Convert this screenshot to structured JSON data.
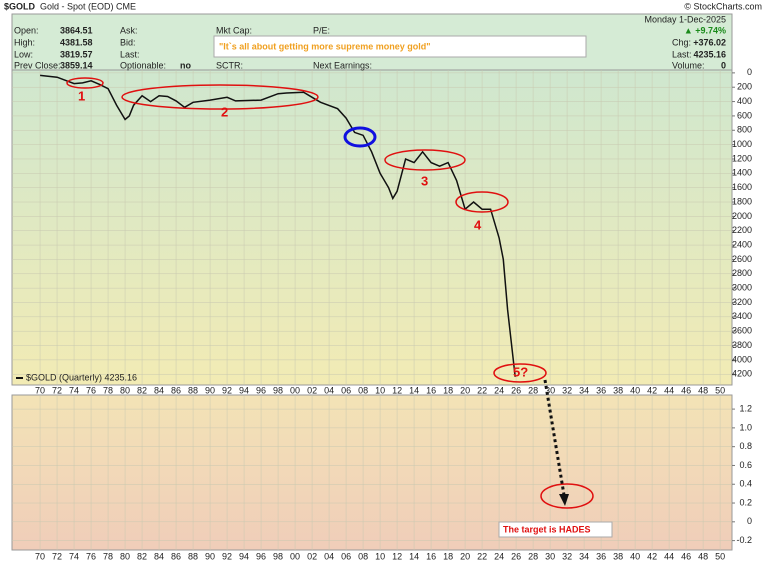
{
  "header": {
    "symbol": "$GOLD",
    "description": "Gold - Spot (EOD) CME",
    "credit": "© StockCharts.com",
    "date": "Monday 1-Dec-2025",
    "change_pct": "▲ +9.74%",
    "fields": [
      [
        "Open:",
        "3864.51"
      ],
      [
        "High:",
        "4381.58"
      ],
      [
        "Low:",
        "3819.57"
      ],
      [
        "Prev Close:",
        "3859.14"
      ]
    ],
    "mid_fields": [
      "Ask:",
      "Bid:",
      "Last:",
      "Optionable:"
    ],
    "optionable": "no",
    "mid2_fields": [
      "Mkt Cap:",
      "SCTR:"
    ],
    "mid3_fields": [
      "P/E:",
      "Next Earnings:"
    ],
    "right_fields": [
      [
        "Chg:",
        "+376.02"
      ],
      [
        "Last:",
        "4235.16"
      ],
      [
        "Volume:",
        "0"
      ]
    ]
  },
  "chart_data": [
    {
      "type": "line",
      "inverted": true,
      "grid": true,
      "x": [
        1970,
        1972,
        1974,
        1975,
        1976,
        1977,
        1978,
        1979,
        1980,
        1980.5,
        1981,
        1982,
        1983,
        1984,
        1985,
        1986,
        1987,
        1988,
        1990,
        1992,
        1993,
        1996,
        1998,
        1999,
        2001,
        2002,
        2003,
        2005,
        2006,
        2007,
        2008,
        2009,
        2010,
        2011,
        2011.5,
        2012,
        2013,
        2014,
        2015,
        2016,
        2017,
        2018,
        2019,
        2020,
        2021,
        2022,
        2023,
        2024,
        2024.5,
        2025,
        2025.9
      ],
      "series": [
        {
          "name": "$GOLD (Quarterly) 4235.16",
          "color": "#111111",
          "values": [
            35,
            60,
            150,
            140,
            110,
            160,
            220,
            450,
            650,
            600,
            450,
            320,
            400,
            320,
            330,
            390,
            480,
            410,
            380,
            340,
            390,
            380,
            290,
            280,
            270,
            340,
            410,
            500,
            630,
            830,
            870,
            1100,
            1400,
            1600,
            1750,
            1650,
            1200,
            1250,
            1100,
            1250,
            1300,
            1250,
            1500,
            1900,
            1800,
            1900,
            1900,
            2300,
            2600,
            3300,
            4235.16
          ]
        }
      ],
      "xlim": [
        1966.7,
        2051.4
      ],
      "ylim": [
        -40,
        4350
      ],
      "yticks": [
        0,
        200,
        400,
        600,
        800,
        1000,
        1200,
        1400,
        1600,
        1800,
        2000,
        2200,
        2400,
        2600,
        2800,
        3000,
        3200,
        3400,
        3600,
        3800,
        4000,
        4200
      ],
      "xticks": [
        {
          "value": 1970,
          "label": "70"
        },
        {
          "value": 1972,
          "label": "72"
        },
        {
          "value": 1974,
          "label": "74"
        },
        {
          "value": 1976,
          "label": "76"
        },
        {
          "value": 1978,
          "label": "78"
        },
        {
          "value": 1980,
          "label": "80"
        },
        {
          "value": 1982,
          "label": "82"
        },
        {
          "value": 1984,
          "label": "84"
        },
        {
          "value": 1986,
          "label": "86"
        },
        {
          "value": 1988,
          "label": "88"
        },
        {
          "value": 1990,
          "label": "90"
        },
        {
          "value": 1992,
          "label": "92"
        },
        {
          "value": 1994,
          "label": "94"
        },
        {
          "value": 1996,
          "label": "96"
        },
        {
          "value": 1998,
          "label": "98"
        },
        {
          "value": 2000,
          "label": "00"
        },
        {
          "value": 2002,
          "label": "02"
        },
        {
          "value": 2004,
          "label": "04"
        },
        {
          "value": 2006,
          "label": "06"
        },
        {
          "value": 2008,
          "label": "08"
        },
        {
          "value": 2010,
          "label": "10"
        },
        {
          "value": 2012,
          "label": "12"
        },
        {
          "value": 2014,
          "label": "14"
        },
        {
          "value": 2016,
          "label": "16"
        },
        {
          "value": 2018,
          "label": "18"
        },
        {
          "value": 2020,
          "label": "20"
        },
        {
          "value": 2022,
          "label": "22"
        },
        {
          "value": 2024,
          "label": "24"
        },
        {
          "value": 2026,
          "label": "26"
        },
        {
          "value": 2028,
          "label": "28"
        },
        {
          "value": 2030,
          "label": "30"
        },
        {
          "value": 2032,
          "label": "32"
        },
        {
          "value": 2034,
          "label": "34"
        },
        {
          "value": 2036,
          "label": "36"
        },
        {
          "value": 2038,
          "label": "38"
        },
        {
          "value": 2040,
          "label": "40"
        },
        {
          "value": 2042,
          "label": "42"
        },
        {
          "value": 2044,
          "label": "44"
        },
        {
          "value": 2046,
          "label": "46"
        },
        {
          "value": 2048,
          "label": "48"
        },
        {
          "value": 2050,
          "label": "50"
        }
      ],
      "annotations": [
        "1",
        "2",
        "3",
        "4",
        "5?",
        "\"It`s all about getting more supreme money gold\""
      ]
    },
    {
      "type": "panel",
      "grid": true,
      "xlim": [
        1966.7,
        2051.4
      ],
      "ylim": [
        -0.3,
        1.35
      ],
      "yticks": [
        1.2,
        {
          "value": 1.0,
          "label": "1.0"
        },
        0.8,
        0.6,
        0.4,
        0.2,
        0,
        -0.2
      ],
      "annotations": [
        "The target is HADES"
      ]
    }
  ]
}
